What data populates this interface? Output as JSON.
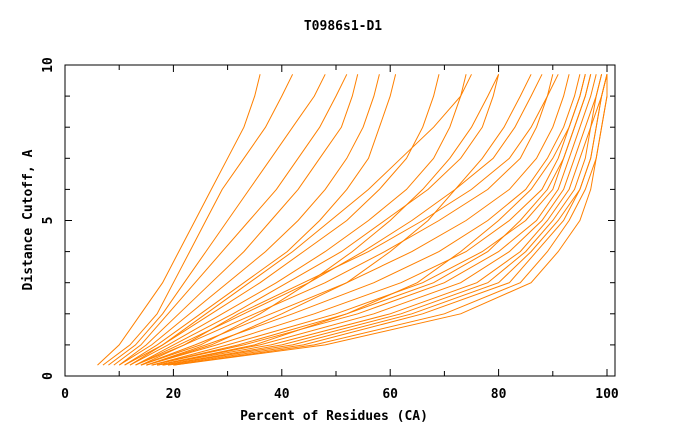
{
  "chart_data": {
    "type": "line",
    "title": "T0986s1-D1",
    "xlabel": "Percent of Residues (CA)",
    "ylabel": "Distance Cutoff, A",
    "xlim": [
      0,
      100
    ],
    "ylim": [
      0,
      10
    ],
    "x_ticks": [
      "0",
      "20",
      "40",
      "60",
      "80",
      "100"
    ],
    "y_ticks": [
      "0",
      "5",
      "10"
    ],
    "grid": false,
    "line_color": "#ff8000",
    "y_levels": [
      0.35,
      1,
      2,
      3,
      4,
      5,
      6,
      7,
      8,
      9,
      9.7
    ],
    "series": [
      {
        "x": [
          6,
          10,
          14,
          18,
          21,
          24,
          27,
          30,
          33,
          35,
          36
        ]
      },
      {
        "x": [
          7,
          12,
          17,
          20,
          23,
          26,
          29,
          33,
          37,
          40,
          42
        ]
      },
      {
        "x": [
          8,
          13,
          18,
          22,
          26,
          30,
          34,
          38,
          42,
          46,
          48
        ]
      },
      {
        "x": [
          9,
          14,
          19,
          24,
          29,
          34,
          39,
          43,
          47,
          50,
          52
        ]
      },
      {
        "x": [
          10,
          15,
          21,
          27,
          33,
          38,
          43,
          47,
          51,
          53,
          54
        ]
      },
      {
        "x": [
          10,
          16,
          23,
          30,
          37,
          43,
          48,
          52,
          55,
          57,
          58
        ]
      },
      {
        "x": [
          11,
          17,
          25,
          33,
          41,
          47,
          52,
          56,
          58,
          60,
          61
        ]
      },
      {
        "x": [
          12,
          18,
          27,
          36,
          44,
          52,
          58,
          63,
          66,
          68,
          69
        ]
      },
      {
        "x": [
          12,
          19,
          29,
          39,
          48,
          56,
          63,
          68,
          71,
          73,
          74
        ]
      },
      {
        "x": [
          13,
          20,
          31,
          41,
          51,
          59,
          67,
          73,
          77,
          79,
          80
        ]
      },
      {
        "x": [
          13,
          21,
          33,
          45,
          55,
          64,
          72,
          79,
          83,
          86,
          88
        ]
      },
      {
        "x": [
          14,
          22,
          35,
          48,
          59,
          69,
          78,
          84,
          87,
          89,
          90
        ]
      },
      {
        "x": [
          14,
          24,
          38,
          52,
          64,
          74,
          82,
          87,
          90,
          92,
          93
        ]
      },
      {
        "x": [
          15,
          26,
          42,
          57,
          69,
          78,
          85,
          89,
          92,
          94,
          95
        ]
      },
      {
        "x": [
          15,
          28,
          46,
          62,
          74,
          82,
          88,
          91,
          93,
          95,
          96
        ]
      },
      {
        "x": [
          16,
          30,
          50,
          66,
          77,
          85,
          90,
          92,
          94,
          96,
          97
        ]
      },
      {
        "x": [
          16,
          33,
          54,
          70,
          80,
          87,
          91,
          93,
          95,
          97,
          98
        ]
      },
      {
        "x": [
          17,
          36,
          57,
          73,
          82,
          88,
          92,
          94,
          96,
          98,
          99
        ]
      },
      {
        "x": [
          17,
          38,
          60,
          76,
          84,
          89,
          93,
          95,
          97,
          98,
          99
        ]
      },
      {
        "x": [
          18,
          40,
          62,
          78,
          85,
          90,
          94,
          96,
          97,
          99,
          100
        ]
      },
      {
        "x": [
          18,
          42,
          64,
          80,
          86,
          91,
          95,
          97,
          98,
          99,
          100
        ]
      },
      {
        "x": [
          19,
          44,
          66,
          82,
          87,
          92,
          95,
          97,
          98,
          99,
          100
        ]
      },
      {
        "x": [
          20,
          46,
          70,
          84,
          89,
          93,
          96,
          98,
          99,
          100,
          100
        ]
      },
      {
        "x": [
          20,
          48,
          73,
          86,
          91,
          95,
          97,
          98,
          99,
          100,
          100
        ]
      },
      {
        "x": [
          17,
          35,
          52,
          65,
          73,
          80,
          86,
          90,
          93,
          95,
          96
        ]
      },
      {
        "x": [
          15,
          27,
          40,
          52,
          60,
          67,
          72,
          77,
          81,
          84,
          86
        ]
      },
      {
        "x": [
          14,
          25,
          36,
          45,
          53,
          60,
          66,
          71,
          75,
          78,
          80
        ]
      },
      {
        "x": [
          11,
          18,
          26,
          34,
          42,
          49,
          56,
          62,
          68,
          73,
          75
        ]
      },
      {
        "x": [
          13,
          22,
          32,
          44,
          56,
          66,
          75,
          82,
          86,
          89,
          91
        ]
      },
      {
        "x": [
          16,
          32,
          52,
          68,
          78,
          84,
          89,
          92,
          94,
          96,
          97
        ]
      }
    ]
  }
}
